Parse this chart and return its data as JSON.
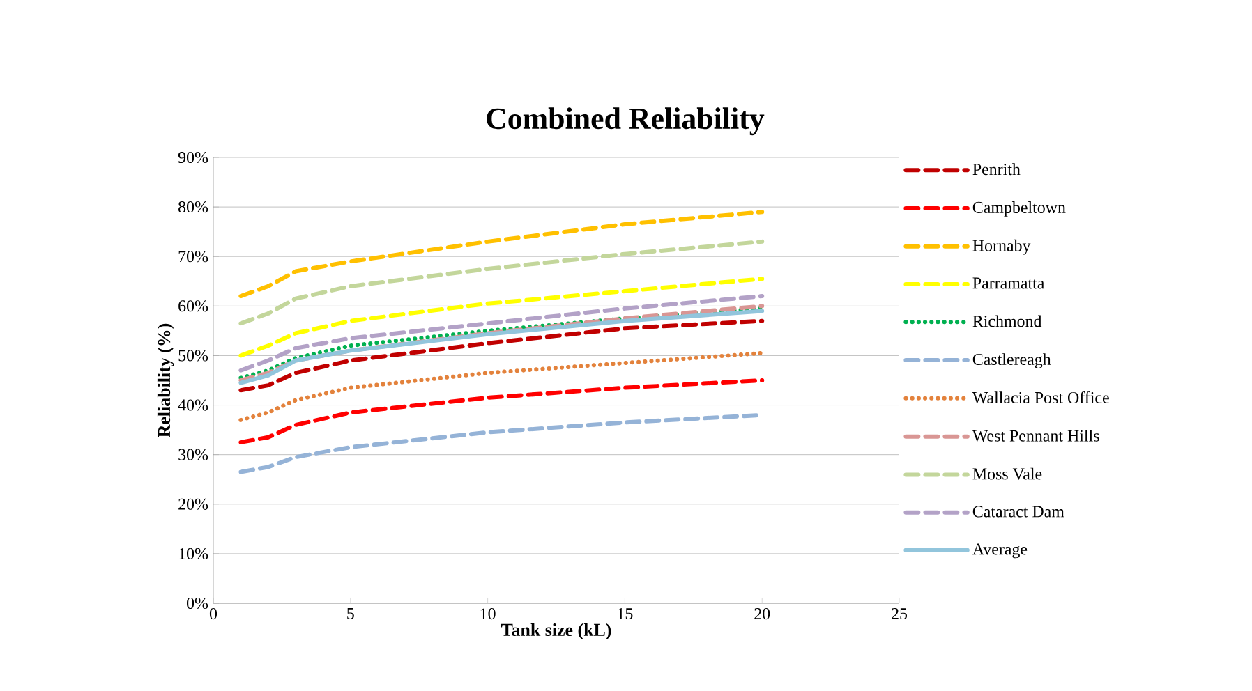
{
  "chart_data": {
    "type": "line",
    "title": "Combined Reliability",
    "xlabel": "Tank size (kL)",
    "ylabel": "Reliability (%)",
    "x": [
      1,
      2,
      3,
      5,
      10,
      15,
      20
    ],
    "xlim": [
      0,
      25
    ],
    "xticks": [
      0,
      5,
      10,
      15,
      20,
      25
    ],
    "ylim": [
      0,
      90
    ],
    "yticks": [
      {
        "value": 0,
        "label": "0%"
      },
      {
        "value": 10,
        "label": "10%"
      },
      {
        "value": 20,
        "label": "20%"
      },
      {
        "value": 30,
        "label": "30%"
      },
      {
        "value": 40,
        "label": "40%"
      },
      {
        "value": 50,
        "label": "50%"
      },
      {
        "value": 60,
        "label": "60%"
      },
      {
        "value": 70,
        "label": "70%"
      },
      {
        "value": 80,
        "label": "80%"
      },
      {
        "value": 90,
        "label": "90%"
      }
    ],
    "grid": "y",
    "legend": "right",
    "marker": "none",
    "series": [
      {
        "name": "Penrith",
        "color": "#c00000",
        "line_style": "dashed",
        "values": [
          43,
          44,
          46.5,
          49,
          52.5,
          55.5,
          57
        ]
      },
      {
        "name": "Campbeltown",
        "color": "#ff0000",
        "line_style": "dashed",
        "values": [
          32.5,
          33.5,
          36,
          38.5,
          41.5,
          43.5,
          45
        ]
      },
      {
        "name": "Hornaby",
        "color": "#ffc000",
        "line_style": "dashed",
        "values": [
          62,
          64,
          67,
          69,
          73,
          76.5,
          79
        ]
      },
      {
        "name": "Parramatta",
        "color": "#ffff00",
        "line_style": "dashed",
        "values": [
          50,
          52,
          54.5,
          57,
          60.5,
          63,
          65.5
        ]
      },
      {
        "name": "Richmond",
        "color": "#00b050",
        "line_style": "dotted",
        "values": [
          45.5,
          47,
          49.5,
          52,
          55,
          57.5,
          59.5
        ]
      },
      {
        "name": "Castlereagh",
        "color": "#95b3d7",
        "line_style": "dashed",
        "values": [
          26.5,
          27.5,
          29.5,
          31.5,
          34.5,
          36.5,
          38
        ]
      },
      {
        "name": "Wallacia Post Office",
        "color": "#e3823c",
        "line_style": "dotted",
        "values": [
          37,
          38.5,
          41,
          43.5,
          46.5,
          48.5,
          50.5
        ]
      },
      {
        "name": "West Pennant Hills",
        "color": "#d99694",
        "line_style": "dashed",
        "values": [
          45,
          46.5,
          49,
          51,
          54.5,
          57.5,
          60
        ]
      },
      {
        "name": "Moss Vale",
        "color": "#c3d69b",
        "line_style": "dashed",
        "values": [
          56.5,
          58.5,
          61.5,
          64,
          67.5,
          70.5,
          73
        ]
      },
      {
        "name": "Cataract Dam",
        "color": "#b3a2c7",
        "line_style": "dashed",
        "values": [
          47,
          49,
          51.5,
          53.5,
          56.5,
          59.5,
          62
        ]
      },
      {
        "name": "Average",
        "color": "#92c5dc",
        "line_style": "solid",
        "values": [
          44.5,
          46,
          49,
          51,
          54.3,
          57,
          59
        ]
      }
    ]
  }
}
